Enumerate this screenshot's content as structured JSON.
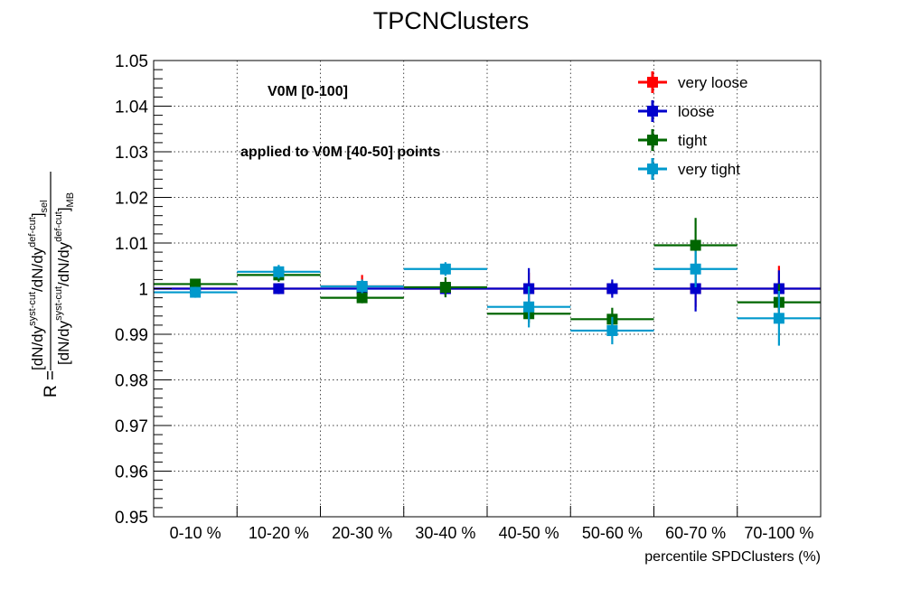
{
  "chart_data": {
    "type": "scatter",
    "title": "TPCNClusters",
    "xlabel": "percentile SPDClusters (%)",
    "ylabel": {
      "prefix": "R = ",
      "numerator": "[dN/dy",
      "numerator_sup": "syst-cut",
      "numerator_mid": "/dN/dy",
      "numerator_sup2": "def-cut",
      "numerator_end": "]",
      "numerator_sub": "sel",
      "denominator": "[dN/dy",
      "denominator_sup": "syst-cut",
      "denominator_mid": "/dN/dy",
      "denominator_sup2": "def-cut",
      "denominator_end": "]",
      "denominator_sub": "MB"
    },
    "categories": [
      "0-10 %",
      "10-20 %",
      "20-30 %",
      "30-40 %",
      "40-50 %",
      "50-60 %",
      "60-70 %",
      "70-100 %"
    ],
    "ylim": [
      0.95,
      1.05
    ],
    "yticks": [
      "0.95",
      "0.96",
      "0.97",
      "0.98",
      "0.99",
      "1",
      "1.01",
      "1.02",
      "1.03",
      "1.04",
      "1.05"
    ],
    "grid": true,
    "legend_position": "top-right",
    "annotations": [
      "V0M [0-100]",
      "applied to V0M [40-50] points"
    ],
    "series": [
      {
        "name": "very loose",
        "color": "#ff0000",
        "values": [
          1.0,
          1.0,
          1.0005,
          1.0,
          1.0,
          1.0,
          1.0,
          1.0
        ],
        "errors": [
          0.001,
          0.0012,
          0.0025,
          0.0015,
          0.0035,
          0.0015,
          0.004,
          0.005
        ]
      },
      {
        "name": "loose",
        "color": "#0000cc",
        "values": [
          1.0,
          1.0,
          1.0,
          1.0,
          1.0,
          1.0,
          1.0,
          1.0
        ],
        "errors": [
          0.001,
          0.0012,
          0.001,
          0.0015,
          0.0045,
          0.002,
          0.005,
          0.004
        ]
      },
      {
        "name": "tight",
        "color": "#006600",
        "values": [
          1.001,
          1.003,
          0.998,
          1.0003,
          0.9945,
          0.9933,
          1.0095,
          0.997
        ],
        "errors": [
          0.001,
          0.0015,
          0.0012,
          0.0022,
          0.002,
          0.0025,
          0.006,
          0.004
        ]
      },
      {
        "name": "very tight",
        "color": "#0099cc",
        "values": [
          0.9992,
          1.0037,
          1.0005,
          1.0043,
          0.996,
          0.9908,
          1.0043,
          0.9935
        ],
        "errors": [
          0.0012,
          0.0015,
          0.0015,
          0.0015,
          0.0045,
          0.003,
          0.004,
          0.006
        ]
      }
    ]
  }
}
